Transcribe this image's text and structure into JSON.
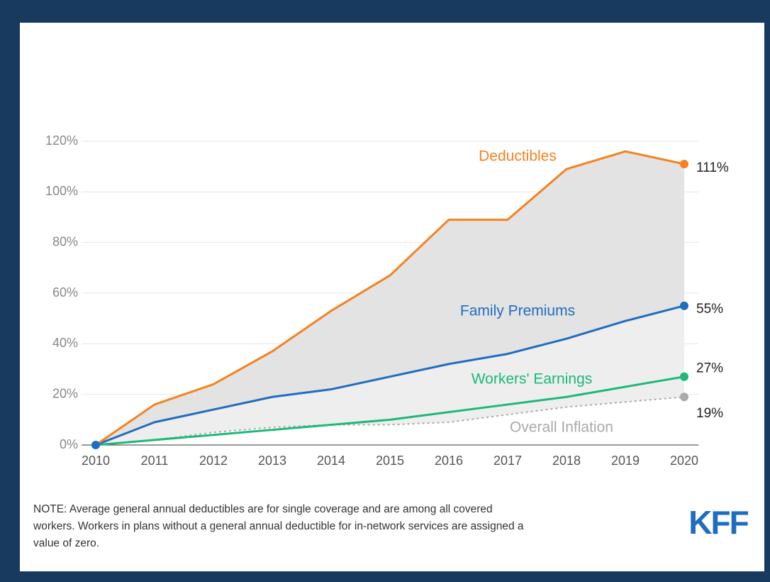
{
  "chart_data": {
    "type": "line",
    "x": [
      2010,
      2011,
      2012,
      2013,
      2014,
      2015,
      2016,
      2017,
      2018,
      2019,
      2020
    ],
    "xlim": [
      2010,
      2020
    ],
    "xticks": [
      2010,
      2011,
      2012,
      2013,
      2014,
      2015,
      2016,
      2017,
      2018,
      2019,
      2020
    ],
    "ylim": [
      0,
      120
    ],
    "yticks": [
      {
        "value": 0,
        "label": "0%"
      },
      {
        "value": 20,
        "label": "20%"
      },
      {
        "value": 40,
        "label": "40%"
      },
      {
        "value": 60,
        "label": "60%"
      },
      {
        "value": 80,
        "label": "80%"
      },
      {
        "value": 100,
        "label": "100%"
      },
      {
        "value": 120,
        "label": "120%"
      }
    ],
    "grid": true,
    "series": [
      {
        "name": "Deductibles",
        "color": "#f5821f",
        "style": "solid",
        "values": [
          0,
          16,
          24,
          37,
          53,
          67,
          89,
          89,
          109,
          116,
          111
        ],
        "value_labels": [
          null,
          null,
          null,
          null,
          null,
          null,
          null,
          null,
          null,
          null,
          "111%"
        ]
      },
      {
        "name": "Family Premiums",
        "color": "#1f6dbf",
        "style": "solid",
        "values": [
          0,
          9,
          14,
          19,
          22,
          27,
          32,
          36,
          42,
          49,
          55
        ],
        "value_labels": [
          null,
          null,
          null,
          null,
          null,
          null,
          null,
          null,
          null,
          null,
          "55%"
        ]
      },
      {
        "name": "Workers' Earnings",
        "color": "#1db87a",
        "style": "solid",
        "values": [
          0,
          2,
          4,
          6,
          8,
          10,
          13,
          16,
          19,
          23,
          27
        ],
        "value_labels": [
          null,
          null,
          null,
          null,
          null,
          null,
          null,
          null,
          null,
          null,
          "27%"
        ]
      },
      {
        "name": "Overall Inflation",
        "color": "#aaaaaa",
        "style": "dotted",
        "values": [
          0,
          2,
          5,
          7,
          8,
          8,
          9,
          12,
          15,
          17,
          19
        ],
        "value_labels": [
          null,
          null,
          null,
          null,
          null,
          null,
          null,
          null,
          null,
          null,
          "19%"
        ]
      }
    ],
    "note": [
      "NOTE: Average general annual deductibles are for single coverage and are among all covered",
      "workers. Workers in plans without a general annual deductible for in-network services are assigned a",
      "value of zero."
    ],
    "logo": "KFF"
  }
}
